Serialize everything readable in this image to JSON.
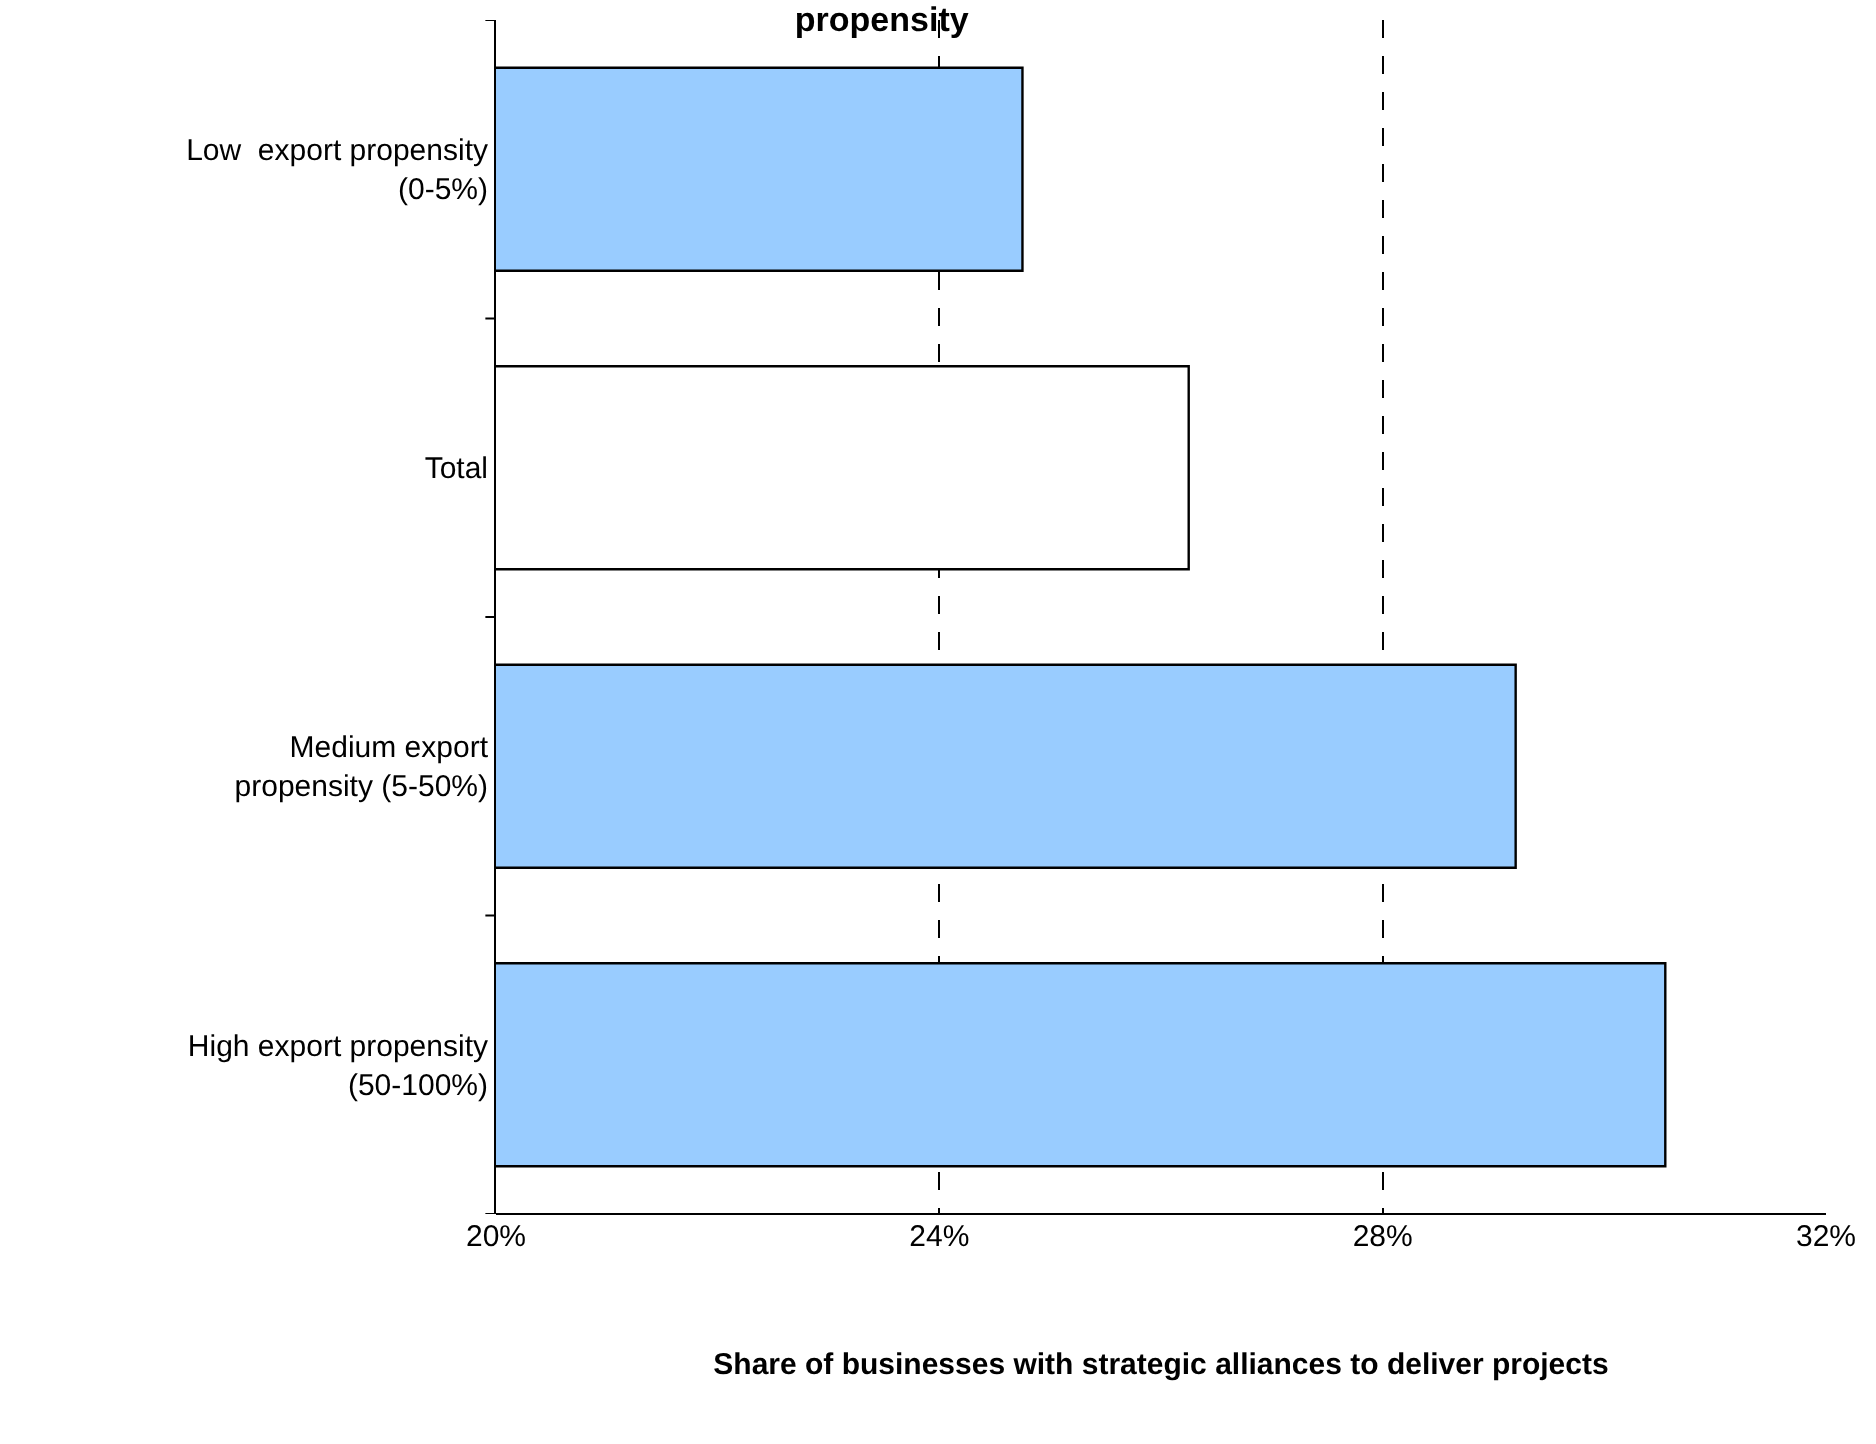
{
  "chart_data": {
    "type": "bar",
    "orientation": "horizontal",
    "title": "propensity",
    "xlabel": "Share of businesses with strategic alliances to deliver projects",
    "categories": [
      "Low  export propensity\n(0-5%)",
      "Total",
      "Medium export\npropensity (5-50%)",
      "High export propensity\n(50-100%)"
    ],
    "values": [
      24.75,
      26.25,
      29.2,
      30.55
    ],
    "colors": [
      "#99ccff",
      "#ffffff",
      "#99ccff",
      "#99ccff"
    ],
    "xlim": [
      20,
      32
    ],
    "xticks": [
      {
        "value": 20,
        "label": "20%"
      },
      {
        "value": 24,
        "label": "24%"
      },
      {
        "value": 28,
        "label": "28%"
      },
      {
        "value": 32,
        "label": "32%"
      }
    ],
    "grid": "x",
    "legend": false
  }
}
